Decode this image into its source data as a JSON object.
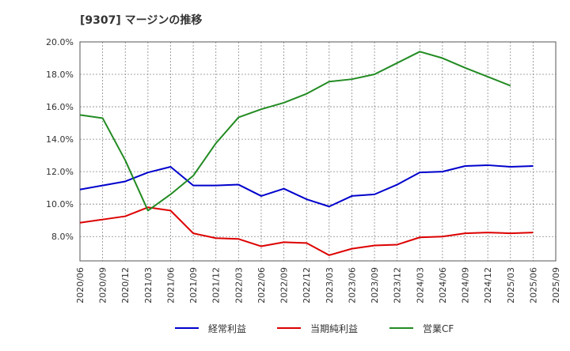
{
  "chart_data": {
    "type": "line",
    "title": "[9307]  マージンの推移",
    "xlabel": "",
    "ylabel": "",
    "ylim": [
      6.5,
      20.0
    ],
    "y_ticks": [
      "8.0%",
      "10.0%",
      "12.0%",
      "14.0%",
      "16.0%",
      "18.0%",
      "20.0%"
    ],
    "y_tick_values": [
      8,
      10,
      12,
      14,
      16,
      18,
      20
    ],
    "categories": [
      "2020/06",
      "2020/09",
      "2020/12",
      "2021/03",
      "2021/06",
      "2021/09",
      "2021/12",
      "2022/03",
      "2022/06",
      "2022/09",
      "2022/12",
      "2023/03",
      "2023/06",
      "2023/09",
      "2023/12",
      "2024/03",
      "2024/06",
      "2024/09",
      "2024/12",
      "2025/03",
      "2025/06",
      "2025/09"
    ],
    "grid": true,
    "legend_position": "bottom",
    "series": [
      {
        "name": "経常利益",
        "color": "#0000cc",
        "values": [
          10.9,
          11.15,
          11.4,
          11.95,
          12.3,
          11.15,
          11.15,
          11.2,
          10.5,
          10.95,
          10.3,
          9.85,
          10.5,
          10.6,
          11.2,
          11.95,
          12.0,
          12.35,
          12.4,
          12.3,
          12.35,
          null
        ]
      },
      {
        "name": "当期純利益",
        "color": "#dd0000",
        "values": [
          8.85,
          9.05,
          9.25,
          9.8,
          9.6,
          8.2,
          7.9,
          7.85,
          7.4,
          7.65,
          7.6,
          6.85,
          7.25,
          7.45,
          7.5,
          7.95,
          8.0,
          8.2,
          8.25,
          8.2,
          8.25,
          null
        ]
      },
      {
        "name": "営業CF",
        "color": "#228b22",
        "values": [
          15.5,
          15.3,
          12.7,
          9.6,
          10.6,
          11.75,
          13.75,
          15.35,
          15.85,
          16.25,
          16.8,
          17.55,
          17.7,
          18.0,
          18.7,
          19.4,
          19.0,
          18.4,
          17.85,
          17.3,
          null,
          null
        ]
      }
    ]
  }
}
